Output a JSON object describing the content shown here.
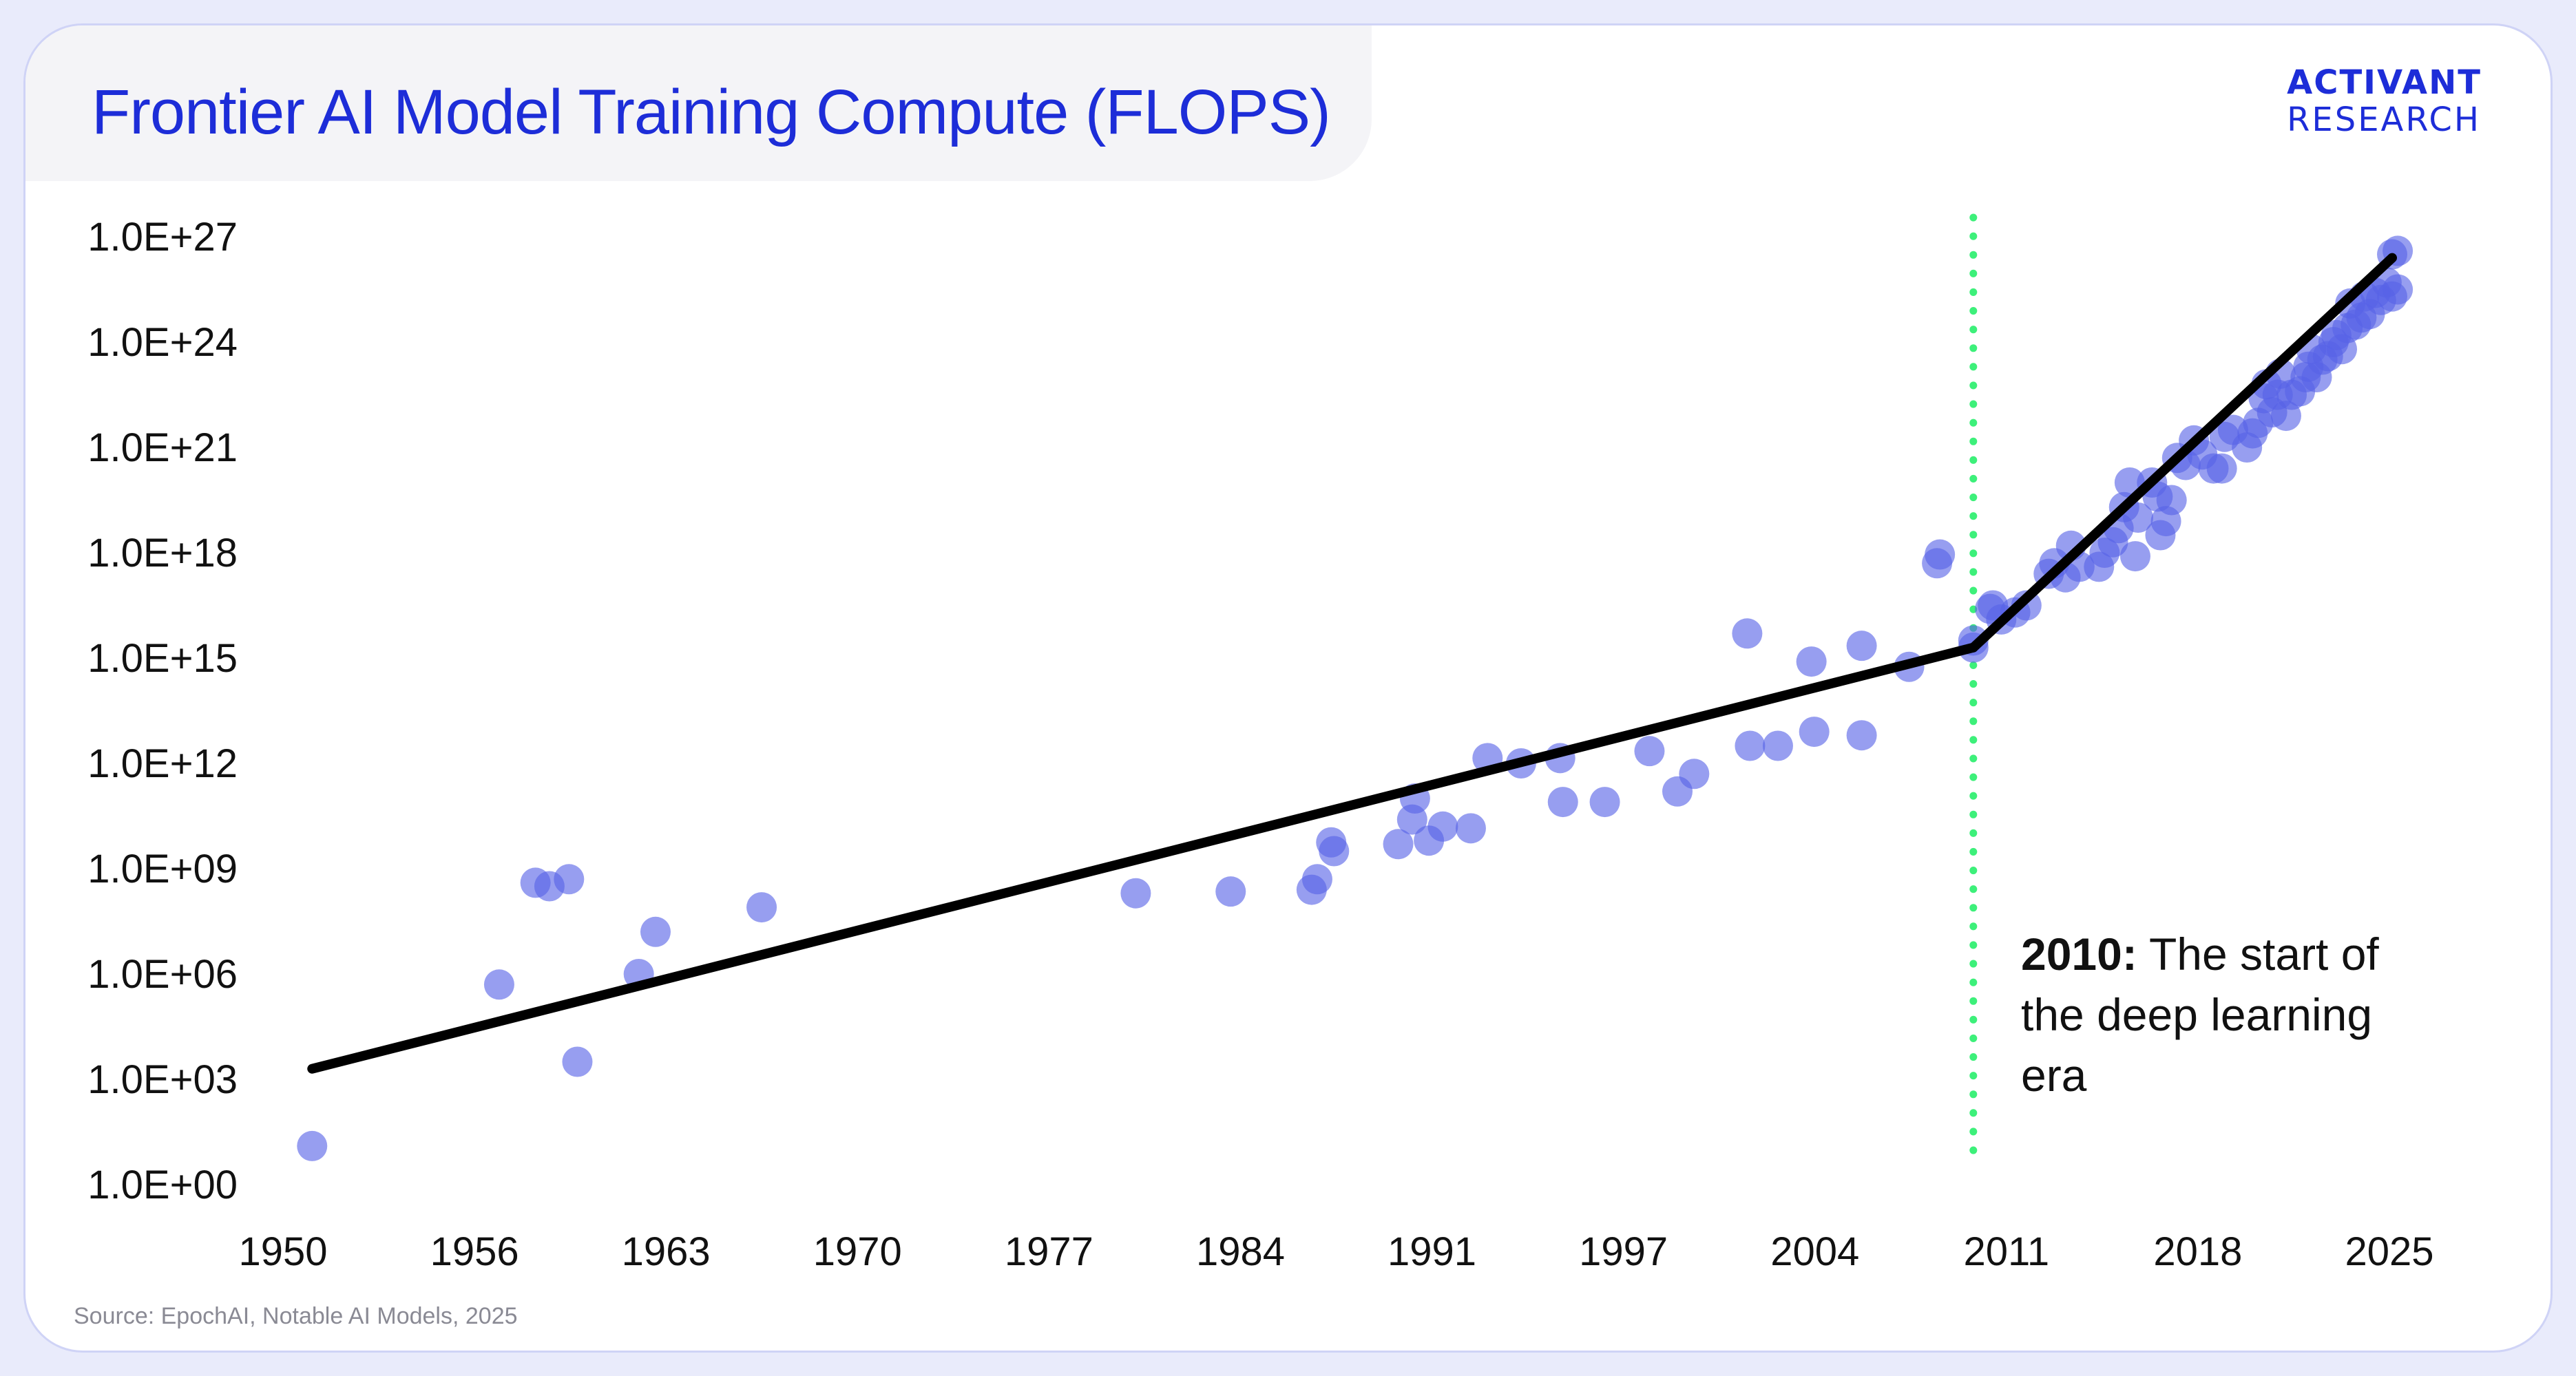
{
  "title": "Frontier AI Model Training Compute (FLOPS)",
  "brand": {
    "line1": "ACTIVANT",
    "line2": "RESEARCH"
  },
  "source": "Source: EpochAI, Notable AI Models, 2025",
  "annotation": {
    "year": "2010:",
    "text": "The start of the deep learning era"
  },
  "colors": {
    "accent": "#1d2dd8",
    "point": "#5762e6",
    "trend": "#000000",
    "marker": "#3df07a"
  },
  "chart_data": {
    "type": "scatter",
    "y_scale": "log10",
    "x_ticks": [
      "1950",
      "1956",
      "1963",
      "1970",
      "1977",
      "1984",
      "1991",
      "1997",
      "2004",
      "2011",
      "2018",
      "2025"
    ],
    "y_ticks": [
      "1.0E+00",
      "1.0E+03",
      "1.0E+06",
      "1.0E+09",
      "1.0E+12",
      "1.0E+15",
      "1.0E+18",
      "1.0E+21",
      "1.0E+24",
      "1.0E+27"
    ],
    "xlim": [
      1950,
      2025
    ],
    "ylim_log10": [
      0,
      27
    ],
    "marker_year": 2010,
    "trend_lines": [
      {
        "from": [
          1950.5,
          3.3
        ],
        "to": [
          2010,
          15.3
        ]
      },
      {
        "from": [
          2010,
          15.3
        ],
        "to": [
          2025,
          26.4
        ]
      }
    ],
    "points_log10": [
      [
        1950.5,
        1.1
      ],
      [
        1957.2,
        5.7
      ],
      [
        1958.5,
        8.6
      ],
      [
        1959.0,
        8.5
      ],
      [
        1959.7,
        8.7
      ],
      [
        1960.0,
        3.5
      ],
      [
        1962.2,
        6.0
      ],
      [
        1962.8,
        7.2
      ],
      [
        1966.6,
        7.9
      ],
      [
        1980.0,
        8.3
      ],
      [
        1983.4,
        8.35
      ],
      [
        1986.3,
        8.4
      ],
      [
        1986.5,
        8.7
      ],
      [
        1987.0,
        9.75
      ],
      [
        1987.1,
        9.5
      ],
      [
        1989.4,
        9.7
      ],
      [
        1989.9,
        10.4
      ],
      [
        1990.0,
        11.0
      ],
      [
        1990.5,
        9.8
      ],
      [
        1991.0,
        10.2
      ],
      [
        1992.0,
        10.15
      ],
      [
        1992.6,
        12.15
      ],
      [
        1993.8,
        12.0
      ],
      [
        1995.2,
        12.15
      ],
      [
        1995.3,
        10.9
      ],
      [
        1996.8,
        10.9
      ],
      [
        1998.4,
        12.35
      ],
      [
        1999.4,
        11.2
      ],
      [
        2000.0,
        11.7
      ],
      [
        2001.9,
        15.7
      ],
      [
        2002.0,
        12.5
      ],
      [
        2003.0,
        12.5
      ],
      [
        2004.2,
        14.9
      ],
      [
        2004.3,
        12.9
      ],
      [
        2006.0,
        15.35
      ],
      [
        2006.0,
        12.8
      ],
      [
        2007.7,
        14.75
      ],
      [
        2008.7,
        17.7
      ],
      [
        2008.8,
        17.95
      ],
      [
        2010.0,
        15.3
      ],
      [
        2010.0,
        15.5
      ],
      [
        2010.6,
        16.4
      ],
      [
        2010.7,
        16.5
      ],
      [
        2011.0,
        16.1
      ],
      [
        2011.5,
        16.3
      ],
      [
        2011.9,
        16.5
      ],
      [
        2012.7,
        17.4
      ],
      [
        2012.9,
        17.7
      ],
      [
        2013.3,
        17.3
      ],
      [
        2013.5,
        18.2
      ],
      [
        2013.8,
        17.6
      ],
      [
        2014.5,
        17.6
      ],
      [
        2014.7,
        18.0
      ],
      [
        2015.0,
        18.3
      ],
      [
        2015.2,
        18.7
      ],
      [
        2015.4,
        19.3
      ],
      [
        2015.6,
        20.0
      ],
      [
        2015.8,
        17.9
      ],
      [
        2015.9,
        19.0
      ],
      [
        2016.4,
        20.0
      ],
      [
        2016.6,
        19.6
      ],
      [
        2016.7,
        18.5
      ],
      [
        2016.9,
        18.9
      ],
      [
        2017.1,
        19.5
      ],
      [
        2017.3,
        20.7
      ],
      [
        2017.6,
        20.5
      ],
      [
        2017.9,
        21.2
      ],
      [
        2018.2,
        20.8
      ],
      [
        2018.6,
        20.4
      ],
      [
        2018.9,
        20.4
      ],
      [
        2019.0,
        21.3
      ],
      [
        2019.3,
        21.5
      ],
      [
        2019.8,
        21.0
      ],
      [
        2020.0,
        21.4
      ],
      [
        2020.2,
        21.7
      ],
      [
        2020.4,
        22.4
      ],
      [
        2020.5,
        22.8
      ],
      [
        2020.7,
        22.0
      ],
      [
        2020.9,
        22.5
      ],
      [
        2021.0,
        23.1
      ],
      [
        2021.2,
        21.9
      ],
      [
        2021.4,
        22.5
      ],
      [
        2021.7,
        22.6
      ],
      [
        2021.9,
        23.0
      ],
      [
        2022.0,
        23.3
      ],
      [
        2022.1,
        23.8
      ],
      [
        2022.3,
        23.0
      ],
      [
        2022.5,
        23.5
      ],
      [
        2022.7,
        23.6
      ],
      [
        2022.9,
        24.0
      ],
      [
        2023.0,
        24.2
      ],
      [
        2023.2,
        23.8
      ],
      [
        2023.4,
        24.4
      ],
      [
        2023.5,
        25.1
      ],
      [
        2023.7,
        24.5
      ],
      [
        2023.9,
        24.7
      ],
      [
        2024.0,
        25.3
      ],
      [
        2024.2,
        24.8
      ],
      [
        2024.4,
        25.4
      ],
      [
        2024.6,
        25.2
      ],
      [
        2024.8,
        25.7
      ],
      [
        2025.0,
        26.5
      ],
      [
        2025.0,
        25.3
      ],
      [
        2025.2,
        26.6
      ],
      [
        2025.2,
        25.5
      ]
    ]
  }
}
